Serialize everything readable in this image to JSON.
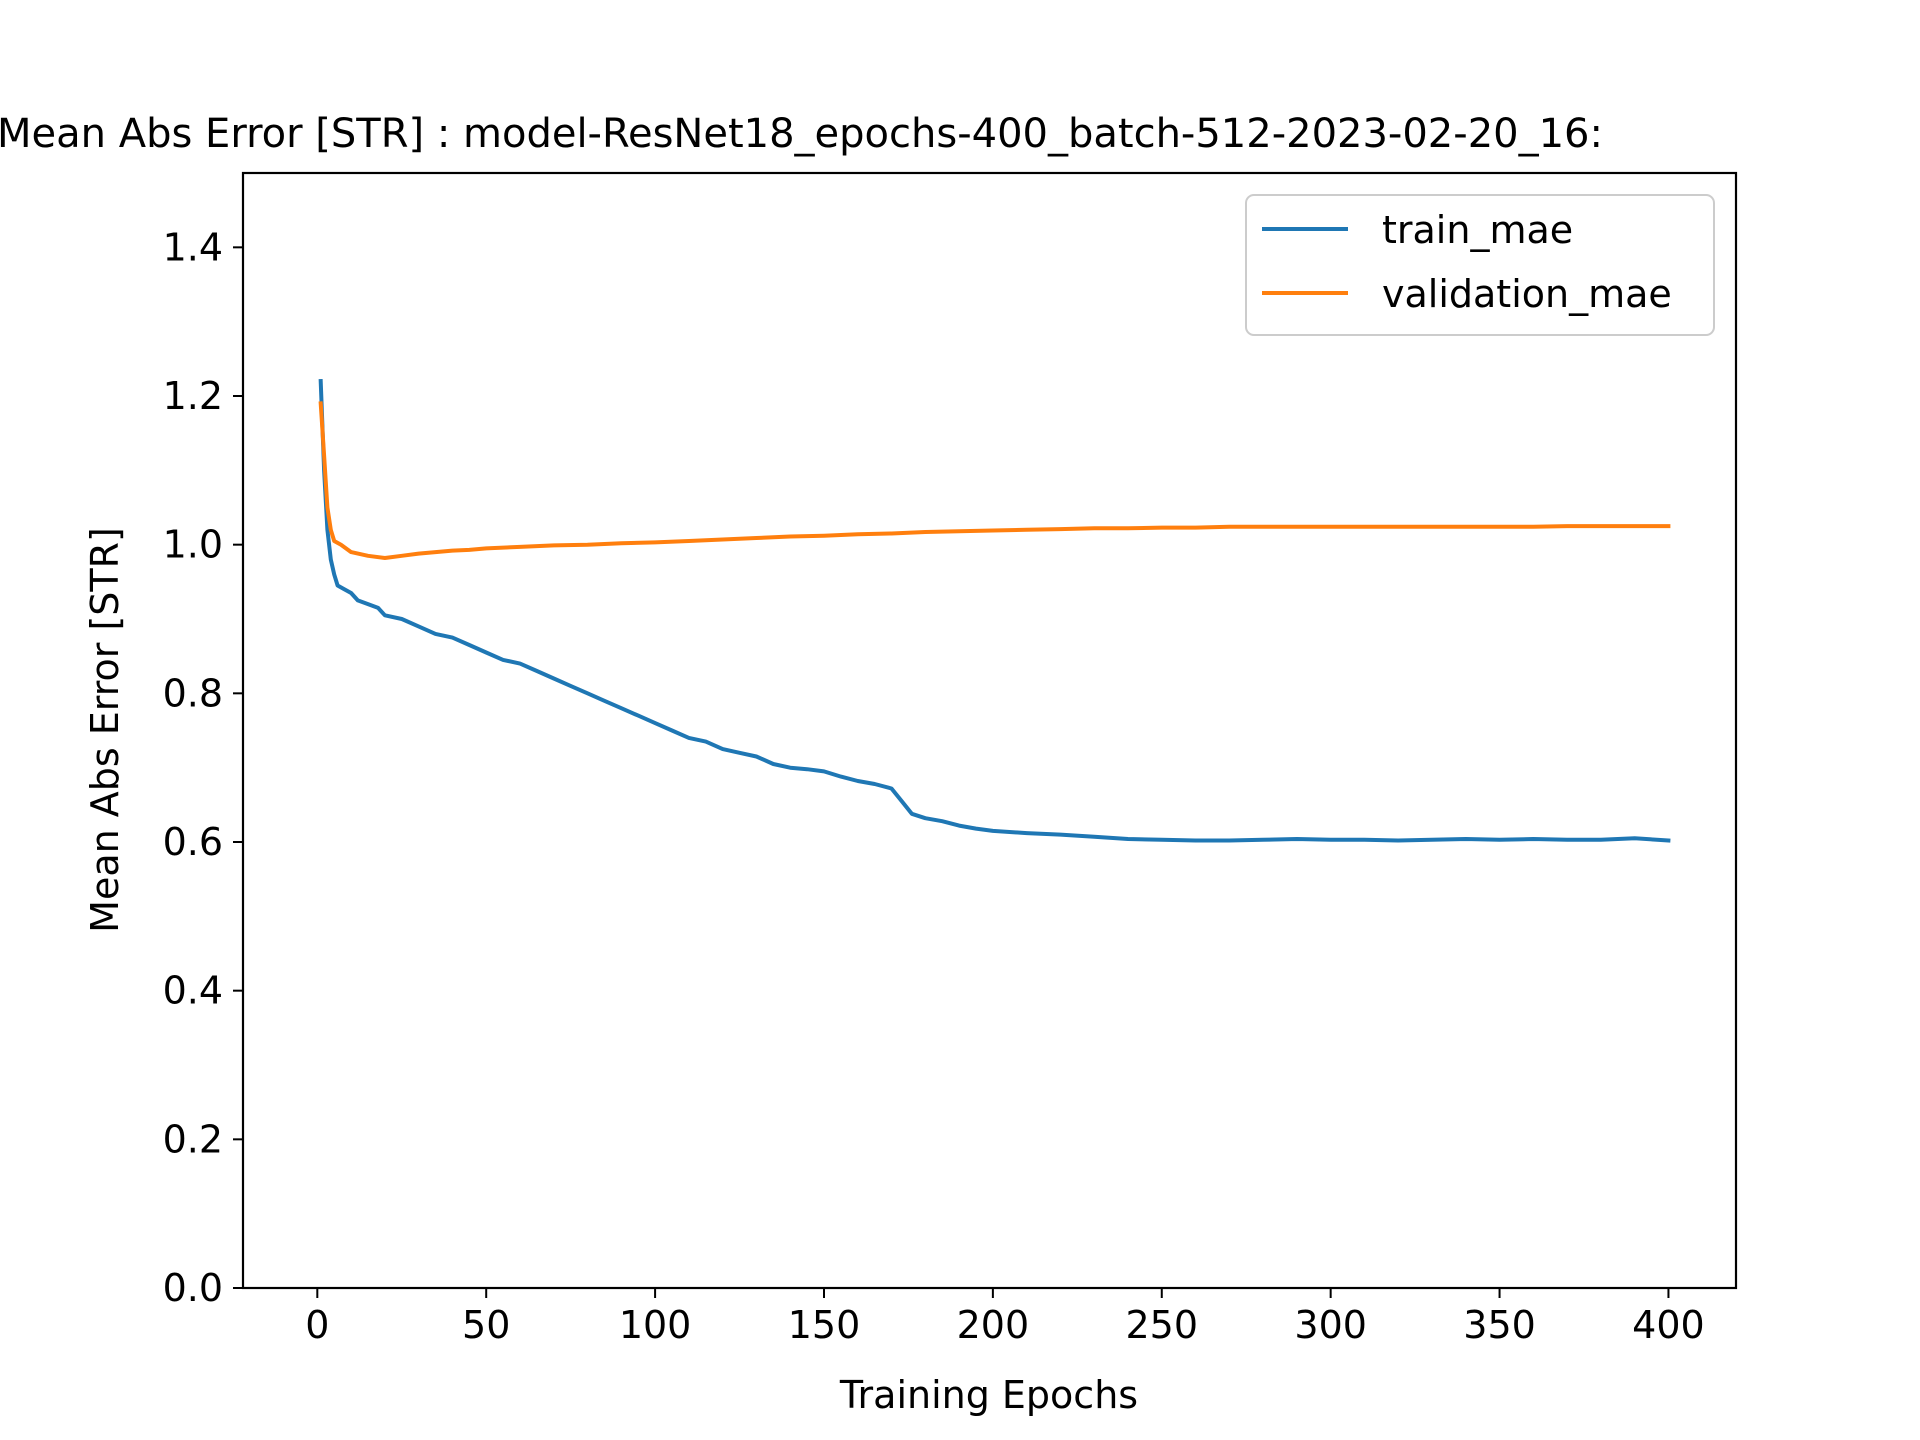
{
  "chart_data": {
    "type": "line",
    "title": "Mean Abs Error [STR] : model-ResNet18_epochs-400_batch-512-2023-02-20_16:",
    "xlabel": "Training Epochs",
    "ylabel": "Mean Abs Error [STR]",
    "xlim": [
      -22,
      420
    ],
    "ylim": [
      0.0,
      1.5
    ],
    "xticks": [
      0,
      50,
      100,
      150,
      200,
      250,
      300,
      350,
      400
    ],
    "xtick_labels": [
      "0",
      "50",
      "100",
      "150",
      "200",
      "250",
      "300",
      "350",
      "400"
    ],
    "yticks": [
      0.0,
      0.2,
      0.4,
      0.6,
      0.8,
      1.0,
      1.2,
      1.4
    ],
    "ytick_labels": [
      "0.0",
      "0.2",
      "0.4",
      "0.6",
      "0.8",
      "1.0",
      "1.2",
      "1.4"
    ],
    "grid": false,
    "legend_position": "top-right",
    "series": [
      {
        "name": "train_mae",
        "color": "#1f77b4",
        "x": [
          1,
          2,
          3,
          4,
          5,
          6,
          8,
          10,
          12,
          15,
          18,
          20,
          25,
          30,
          35,
          40,
          45,
          50,
          55,
          60,
          65,
          70,
          75,
          80,
          85,
          90,
          95,
          100,
          105,
          110,
          115,
          120,
          125,
          130,
          135,
          140,
          145,
          150,
          155,
          160,
          165,
          170,
          173,
          176,
          180,
          185,
          190,
          195,
          200,
          210,
          220,
          230,
          240,
          250,
          260,
          270,
          280,
          290,
          300,
          310,
          320,
          330,
          340,
          350,
          360,
          370,
          380,
          390,
          400
        ],
        "y": [
          1.22,
          1.1,
          1.02,
          0.98,
          0.96,
          0.945,
          0.94,
          0.935,
          0.925,
          0.92,
          0.915,
          0.905,
          0.9,
          0.89,
          0.88,
          0.875,
          0.865,
          0.855,
          0.845,
          0.84,
          0.83,
          0.82,
          0.81,
          0.8,
          0.79,
          0.78,
          0.77,
          0.76,
          0.75,
          0.74,
          0.735,
          0.725,
          0.72,
          0.715,
          0.705,
          0.7,
          0.698,
          0.695,
          0.688,
          0.682,
          0.678,
          0.672,
          0.655,
          0.638,
          0.632,
          0.628,
          0.622,
          0.618,
          0.615,
          0.612,
          0.61,
          0.607,
          0.604,
          0.603,
          0.602,
          0.602,
          0.603,
          0.604,
          0.603,
          0.603,
          0.602,
          0.603,
          0.604,
          0.603,
          0.604,
          0.603,
          0.603,
          0.605,
          0.602
        ]
      },
      {
        "name": "validation_mae",
        "color": "#ff7f0e",
        "x": [
          1,
          2,
          3,
          4,
          5,
          7,
          10,
          15,
          20,
          25,
          30,
          35,
          40,
          45,
          50,
          60,
          70,
          80,
          90,
          100,
          110,
          120,
          130,
          140,
          150,
          160,
          170,
          180,
          190,
          200,
          210,
          220,
          230,
          240,
          250,
          260,
          270,
          280,
          290,
          300,
          310,
          320,
          330,
          340,
          350,
          360,
          370,
          380,
          390,
          400
        ],
        "y": [
          1.19,
          1.12,
          1.05,
          1.02,
          1.005,
          1.0,
          0.99,
          0.985,
          0.982,
          0.985,
          0.988,
          0.99,
          0.992,
          0.993,
          0.995,
          0.997,
          0.999,
          1.0,
          1.002,
          1.003,
          1.005,
          1.007,
          1.009,
          1.011,
          1.012,
          1.014,
          1.015,
          1.017,
          1.018,
          1.019,
          1.02,
          1.021,
          1.022,
          1.022,
          1.023,
          1.023,
          1.024,
          1.024,
          1.024,
          1.024,
          1.024,
          1.024,
          1.024,
          1.024,
          1.024,
          1.024,
          1.025,
          1.025,
          1.025,
          1.025
        ]
      }
    ]
  }
}
